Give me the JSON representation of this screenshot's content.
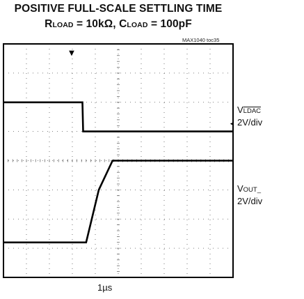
{
  "chart_data": {
    "type": "line",
    "title": "POSITIVE FULL-SCALE SETTLING TIME",
    "subtitle": {
      "r_sym": "R",
      "r_sub": "LOAD",
      "r_rest": " = 10kΩ, ",
      "c_sym": "C",
      "c_sub": "LOAD",
      "c_rest": " = 100pF"
    },
    "figure_id": "MAX1040 toc35",
    "x_scale": "1µs",
    "grid": "on",
    "divisions": {
      "x": 10,
      "y": 8
    },
    "trigger_marker": "▼",
    "series": [
      {
        "name": {
          "prefix": "V",
          "sub": "LDAC",
          "scale": "2V/div"
        },
        "kind": "step-down",
        "x_div": [
          0,
          3.44,
          3.47,
          10
        ],
        "y_div": [
          6.0,
          6.0,
          5.0,
          5.0
        ]
      },
      {
        "name": {
          "prefix": "V",
          "sub": "OUT_",
          "scale": "2V/div"
        },
        "kind": "ramp-up",
        "x_div": [
          0,
          3.6,
          4.15,
          4.75,
          10
        ],
        "y_div": [
          1.2,
          1.2,
          3.0,
          4.0,
          4.0
        ]
      }
    ]
  }
}
